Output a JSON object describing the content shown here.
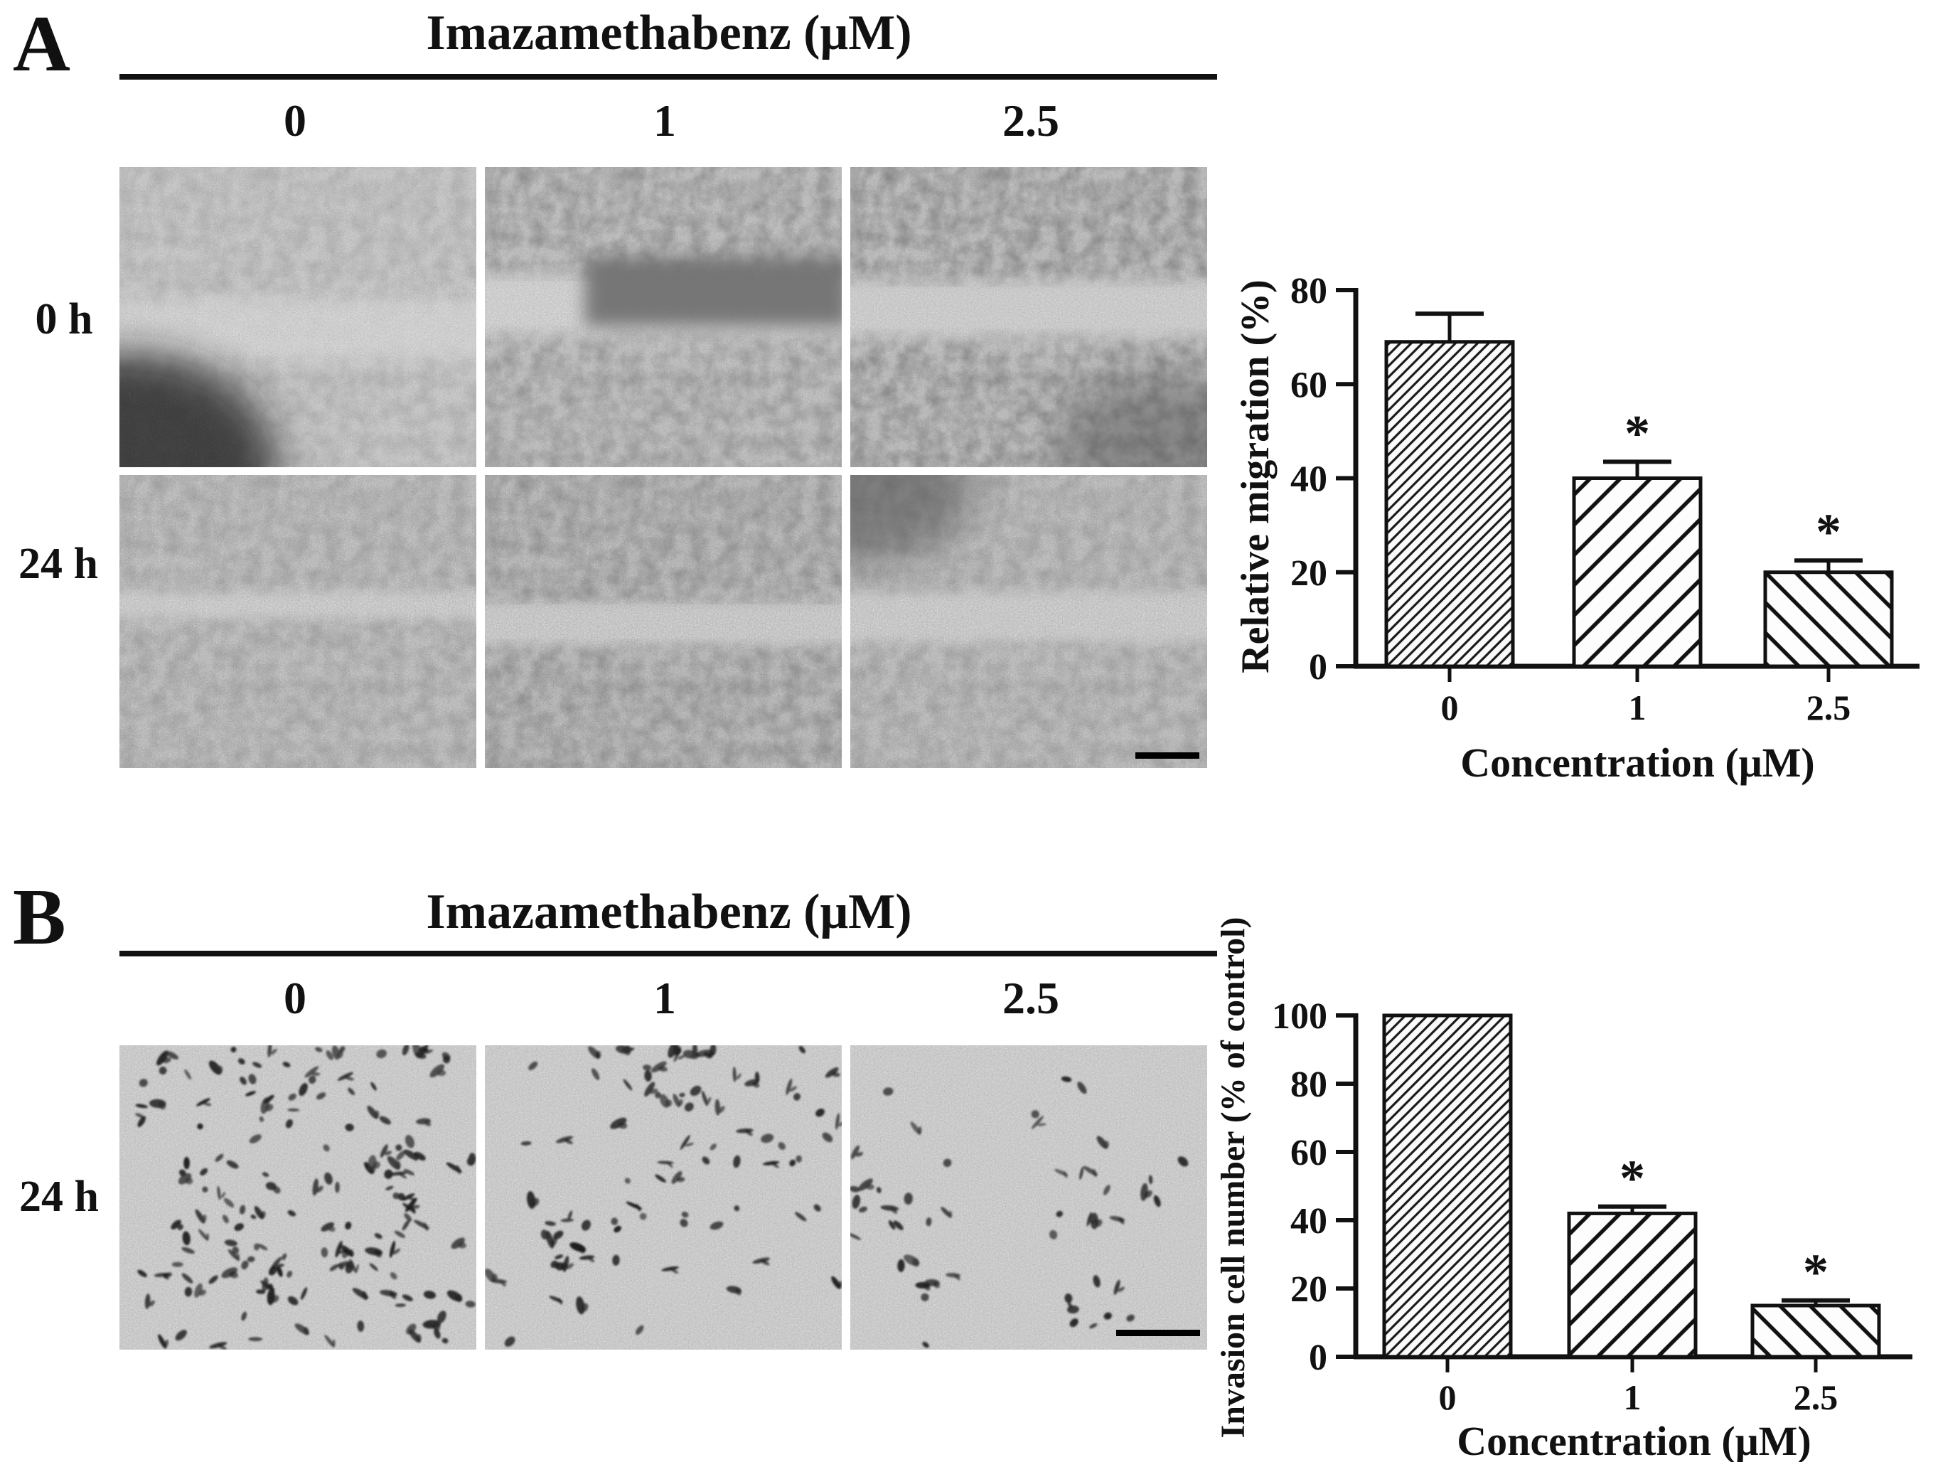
{
  "ink_color": "#111111",
  "panels": {
    "a": {
      "label": "A",
      "treatment_title": "Imazamethabenz (μM)",
      "concentration_labels": [
        "0",
        "1",
        "2.5"
      ],
      "row_labels": [
        "0 h",
        "24 h"
      ]
    },
    "b": {
      "label": "B",
      "treatment_title": "Imazamethabenz (μM)",
      "concentration_labels": [
        "0",
        "1",
        "2.5"
      ],
      "row_labels": [
        "24 h"
      ]
    }
  },
  "chart_data": [
    {
      "type": "bar",
      "panel": "A",
      "categories": [
        "0",
        "1",
        "2.5"
      ],
      "values": [
        69,
        40,
        20
      ],
      "errors": [
        6,
        3.5,
        2.5
      ],
      "significance": [
        "",
        "*",
        "*"
      ],
      "xlabel": "Concentration (μM)",
      "ylabel": "Relative migration (%)",
      "ylim": [
        0,
        80
      ],
      "yticks": [
        0,
        20,
        40,
        60,
        80
      ],
      "grid": false,
      "legend": "none",
      "hatches": [
        "dense-forward",
        "wide-forward",
        "wide-backward"
      ]
    },
    {
      "type": "bar",
      "panel": "B",
      "categories": [
        "0",
        "1",
        "2.5"
      ],
      "values": [
        100,
        42,
        15
      ],
      "errors": [
        0,
        2,
        1.5
      ],
      "significance": [
        "",
        "*",
        "*"
      ],
      "xlabel": "Concentration (μM)",
      "ylabel": "Invasion cell number (% of control)",
      "ylim": [
        0,
        100
      ],
      "yticks": [
        0,
        20,
        40,
        60,
        80,
        100
      ],
      "grid": false,
      "legend": "none",
      "hatches": [
        "dense-forward",
        "wide-forward",
        "wide-backward"
      ]
    }
  ]
}
